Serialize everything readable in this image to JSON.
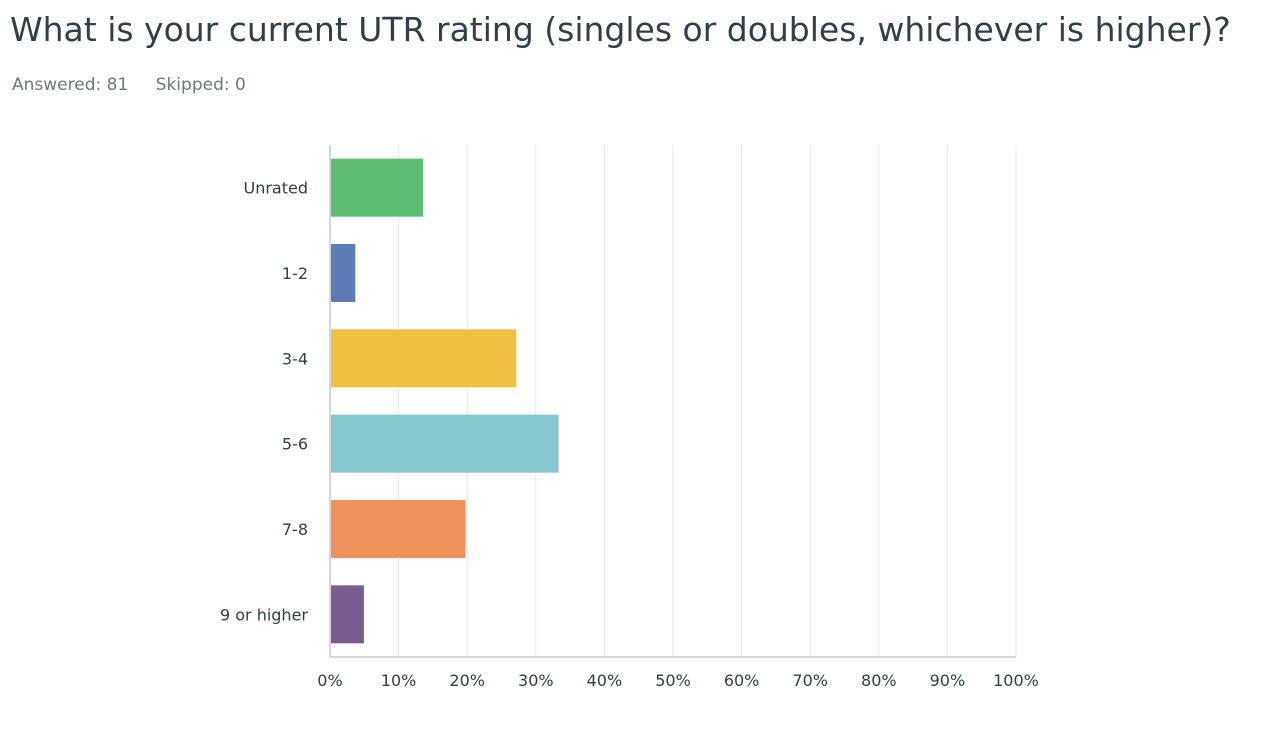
{
  "question": {
    "title": "What is your current UTR rating (singles or doubles, whichever is higher)?",
    "answered_label": "Answered:",
    "answered_count": "81",
    "skipped_label": "Skipped:",
    "skipped_count": "0"
  },
  "colors": {
    "grid": "#e5e6e7",
    "axis": "#c8c9ca"
  },
  "chart_data": {
    "type": "bar",
    "orientation": "horizontal",
    "title": "",
    "xlabel": "",
    "ylabel": "",
    "categories": [
      "Unrated",
      "1-2",
      "3-4",
      "5-6",
      "7-8",
      "9 or higher"
    ],
    "values": [
      13.58,
      3.7,
      27.16,
      33.33,
      19.75,
      4.94
    ],
    "unit": "%",
    "xlim": [
      0,
      100
    ],
    "ticks": [
      0,
      10,
      20,
      30,
      40,
      50,
      60,
      70,
      80,
      90,
      100
    ],
    "tick_labels": [
      "0%",
      "10%",
      "20%",
      "30%",
      "40%",
      "50%",
      "60%",
      "70%",
      "80%",
      "90%",
      "100%"
    ],
    "bar_colors": [
      "#5cbd73",
      "#5b7cb5",
      "#f0c040",
      "#84c7cc",
      "#ef915c",
      "#775e8e"
    ],
    "grid": true,
    "legend": "none"
  }
}
